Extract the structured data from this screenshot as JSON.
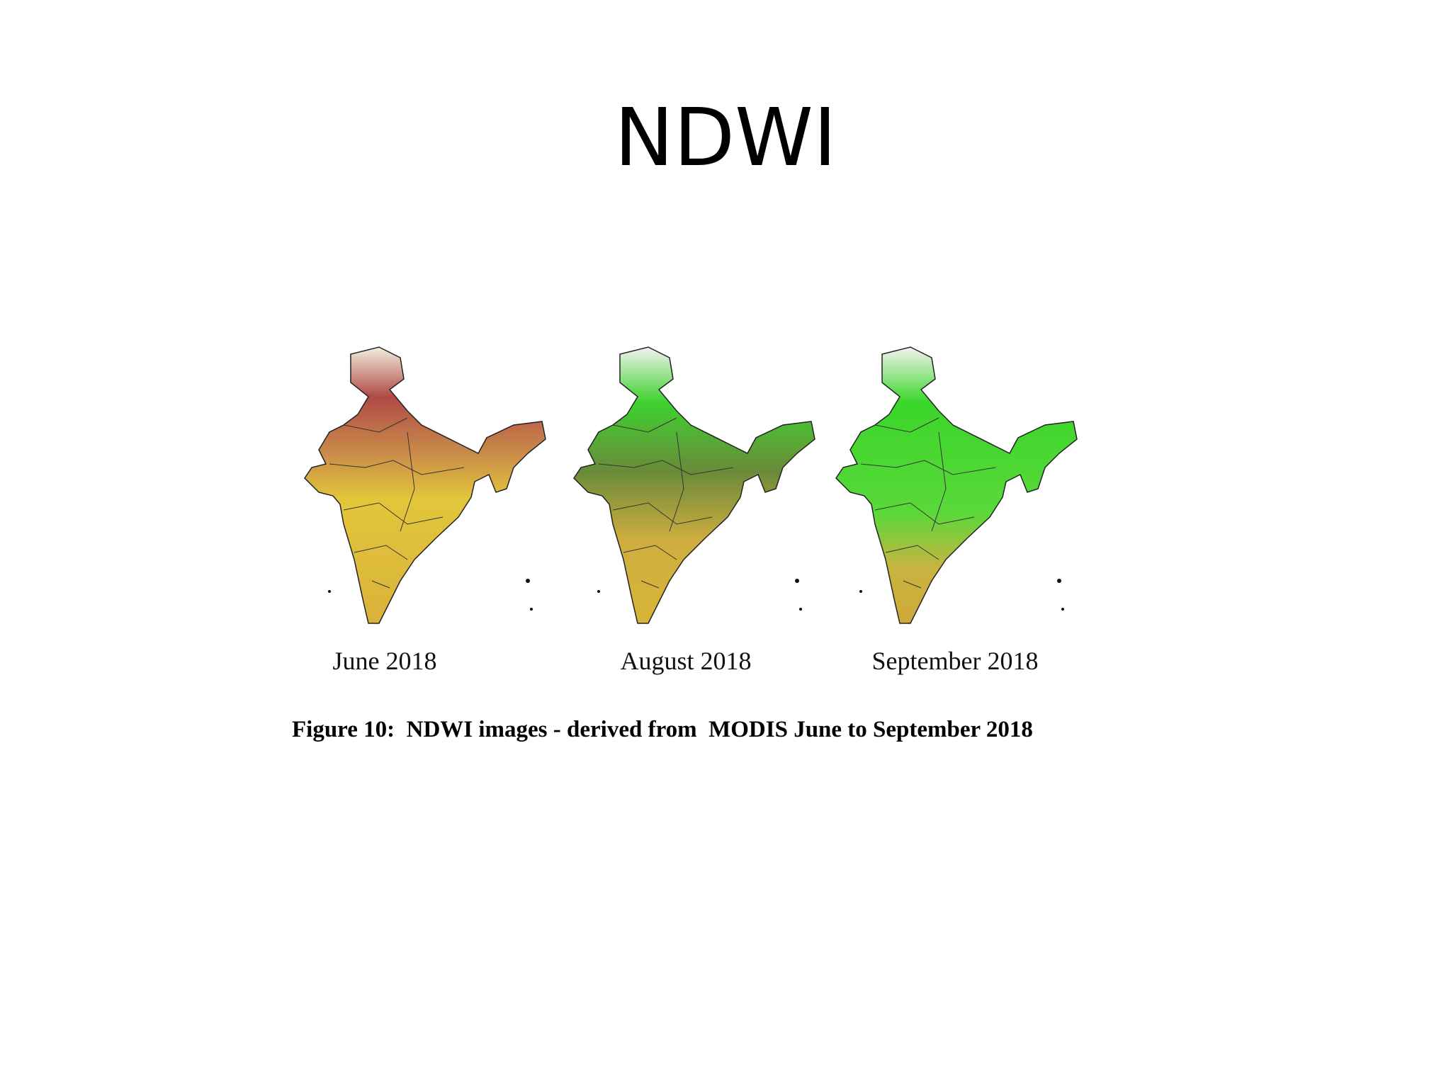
{
  "title": "NDWI",
  "figure": {
    "panels": [
      {
        "label": "June 2018"
      },
      {
        "label": "August 2018"
      },
      {
        "label": "September 2018"
      }
    ],
    "caption": "Figure 10:  NDWI images - derived from  MODIS June to September 2018"
  }
}
